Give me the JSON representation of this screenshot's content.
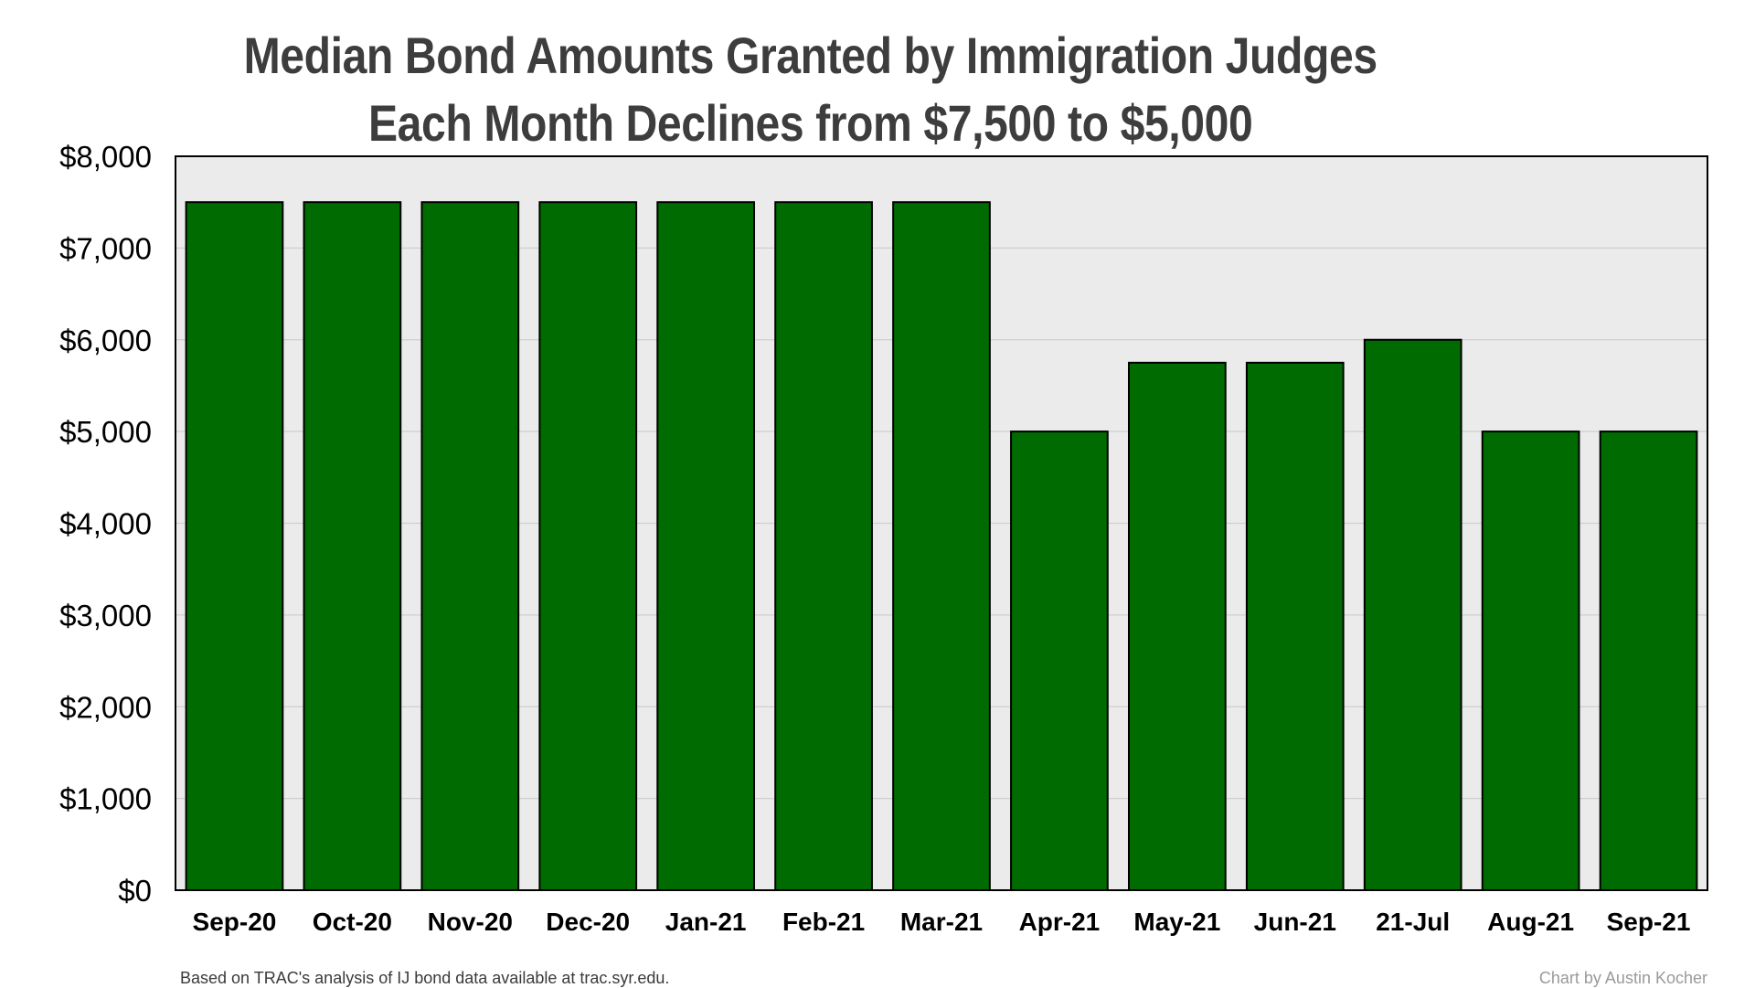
{
  "chart_data": {
    "type": "bar",
    "title": [
      "Median Bond Amounts Granted by Immigration Judges",
      "Each Month Declines from $7,500 to $5,000"
    ],
    "categories": [
      "Sep-20",
      "Oct-20",
      "Nov-20",
      "Dec-20",
      "Jan-21",
      "Feb-21",
      "Mar-21",
      "Apr-21",
      "May-21",
      "Jun-21",
      "21-Jul",
      "Aug-21",
      "Sep-21"
    ],
    "values": [
      7500,
      7500,
      7500,
      7500,
      7500,
      7500,
      7500,
      5000,
      5750,
      5750,
      6000,
      5000,
      5000
    ],
    "yticks": [
      0,
      1000,
      2000,
      3000,
      4000,
      5000,
      6000,
      7000,
      8000
    ],
    "ytick_labels": [
      "$0",
      "$1,000",
      "$2,000",
      "$3,000",
      "$4,000",
      "$5,000",
      "$6,000",
      "$7,000",
      "$8,000"
    ],
    "ylim": [
      0,
      8000
    ],
    "xlabel": "",
    "ylabel": "",
    "grid": true,
    "legend": "none",
    "colors": {
      "bar": "#006b00",
      "bar_border": "#000000",
      "plot_background": "#ebebeb",
      "gridline": "#cfcfcf"
    }
  },
  "footnotes": {
    "source": "Based on TRAC's analysis of IJ bond data available at trac.syr.edu.",
    "credit": "Chart by Austin Kocher"
  }
}
